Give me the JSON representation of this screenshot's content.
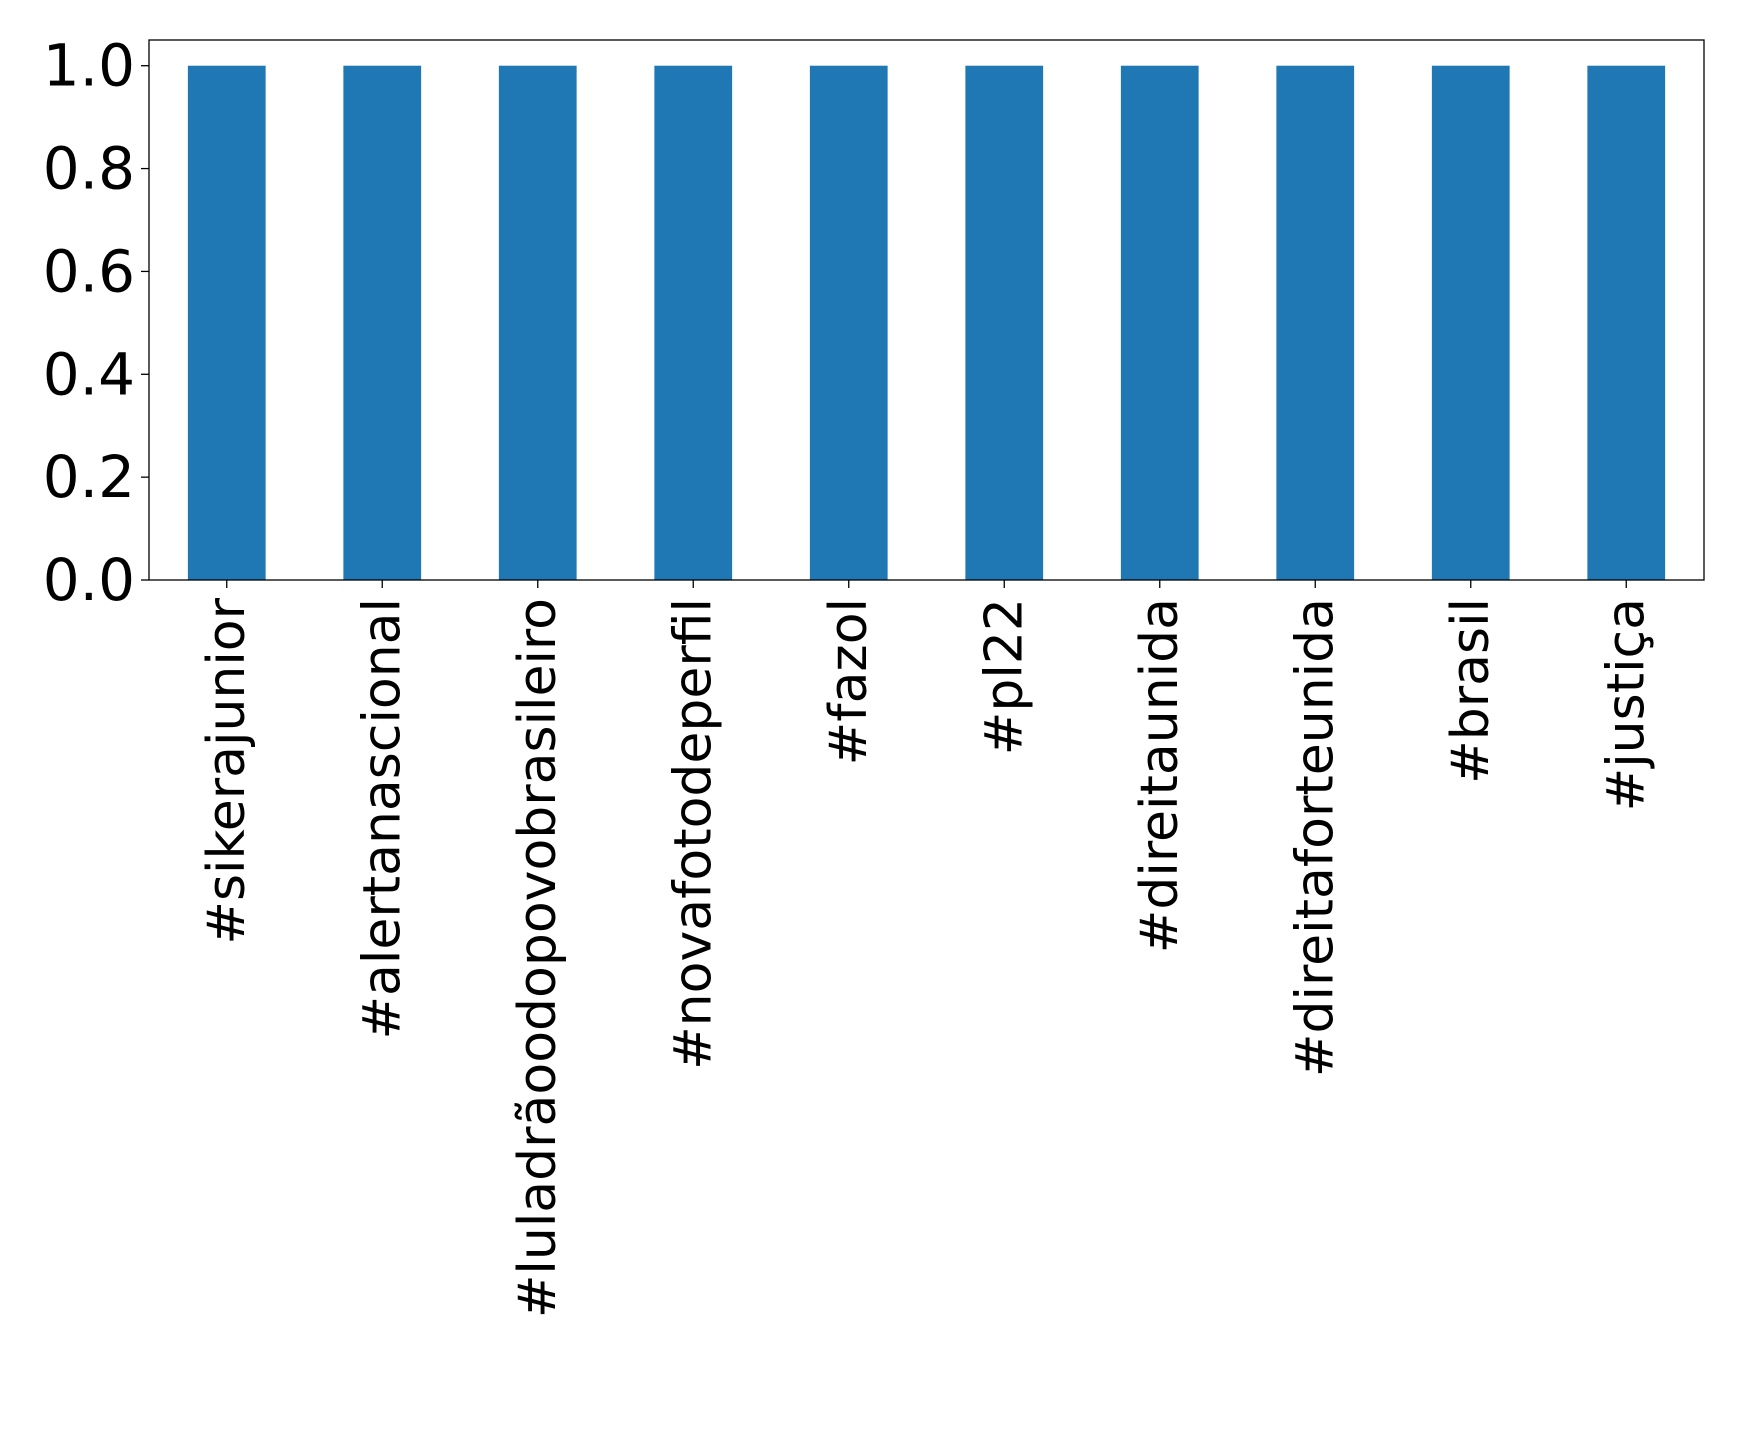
{
  "chart_data": {
    "type": "bar",
    "title": "",
    "xlabel": "",
    "ylabel": "",
    "categories": [
      "#sikerajunior",
      "#alertanascional",
      "#luladrãoodopovobrasileiro",
      "#novafotodeperfil",
      "#fazol",
      "#pl22",
      "#direitaunida",
      "#direitaforteunida",
      "#brasil",
      "#justiça"
    ],
    "values": [
      1.0,
      1.0,
      1.0,
      1.0,
      1.0,
      1.0,
      1.0,
      1.0,
      1.0,
      1.0
    ],
    "ylim": [
      0,
      1.05
    ],
    "yticks": [
      "0.0",
      "0.2",
      "0.4",
      "0.6",
      "0.8",
      "1.0"
    ],
    "bar_color": "#1f77b4",
    "grid": false,
    "legend": "none"
  }
}
